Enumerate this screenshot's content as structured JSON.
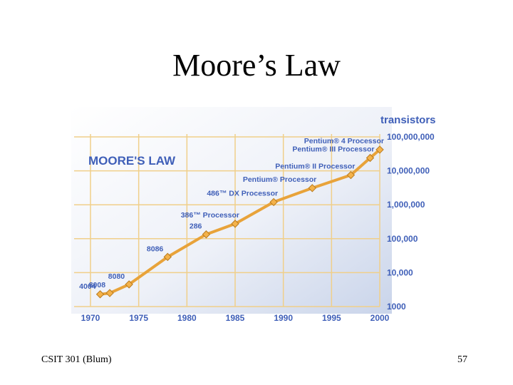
{
  "slide": {
    "title": "Moore’s Law",
    "footer_left": "CSIT 301 (Blum)",
    "page_number": "57"
  },
  "colors": {
    "label_blue": "#3f5fb8",
    "line_orange": "#e8a33a",
    "grid": "#f0cf8a",
    "background_wash": "#eef1f8"
  },
  "chart_data": {
    "type": "line",
    "title": "MOORE'S LAW",
    "ylabel": "transistors",
    "xlabel": "",
    "scale_y": "log",
    "grid": true,
    "xlim": [
      1970,
      2000
    ],
    "ylim": [
      1000,
      100000000
    ],
    "x_ticks": [
      "1970",
      "1975",
      "1980",
      "1985",
      "1990",
      "1995",
      "2000"
    ],
    "y_ticks": [
      "1000",
      "10,000",
      "100,000",
      "1,000,000",
      "10,000,000",
      "100,000,000"
    ],
    "points": [
      {
        "label": "4004",
        "year": 1971,
        "transistors": 2300
      },
      {
        "label": "8008",
        "year": 1972,
        "transistors": 2500
      },
      {
        "label": "8080",
        "year": 1974,
        "transistors": 4500
      },
      {
        "label": "8086",
        "year": 1978,
        "transistors": 29000
      },
      {
        "label": "286",
        "year": 1982,
        "transistors": 134000
      },
      {
        "label": "386™ Processor",
        "year": 1985,
        "transistors": 275000
      },
      {
        "label": "486™ DX Processor",
        "year": 1989,
        "transistors": 1200000
      },
      {
        "label": "Pentium® Processor",
        "year": 1993,
        "transistors": 3100000
      },
      {
        "label": "Pentium® II Processor",
        "year": 1997,
        "transistors": 7500000
      },
      {
        "label": "Pentium® III Processor",
        "year": 1999,
        "transistors": 24000000
      },
      {
        "label": "Pentium® 4 Processor",
        "year": 2000,
        "transistors": 42000000
      }
    ]
  }
}
